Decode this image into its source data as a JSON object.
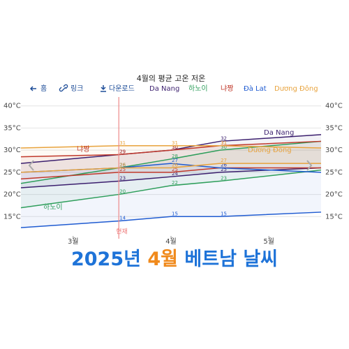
{
  "chart_data": {
    "type": "line",
    "title": "4월의 평균 고온 저온",
    "toolbar": [
      "홈",
      "링크",
      "다운로드"
    ],
    "xlim": [
      -16,
      76
    ],
    "xticks": [
      {
        "value": 0,
        "label": "3월"
      },
      {
        "value": 30,
        "label": "4월"
      },
      {
        "value": 60,
        "label": "5월"
      }
    ],
    "ylim": [
      10,
      42
    ],
    "yticks": [
      {
        "value": 15,
        "label": "15°C"
      },
      {
        "value": 20,
        "label": "20°C"
      },
      {
        "value": 25,
        "label": "25°C"
      },
      {
        "value": 30,
        "label": "30°C"
      },
      {
        "value": 35,
        "label": "35°C"
      },
      {
        "value": 40,
        "label": "40°C"
      }
    ],
    "grid": true,
    "current": {
      "x": 14,
      "label": "현재"
    },
    "x": [
      -16,
      14,
      30,
      45,
      76
    ],
    "series": [
      {
        "name": "Da Nang",
        "color": "#3b1f6e",
        "high": [
          27,
          29,
          30,
          32,
          33.5
        ],
        "low": [
          21.5,
          23,
          24,
          25,
          26
        ]
      },
      {
        "name": "하노이",
        "color": "#2e9e5b",
        "high": [
          22.5,
          26,
          28,
          30,
          32
        ],
        "low": [
          17,
          20,
          22,
          23,
          25.5
        ]
      },
      {
        "name": "냐짱",
        "color": "#c0392b",
        "high": [
          28.5,
          29,
          30,
          31,
          32
        ],
        "low": [
          23.5,
          25,
          25,
          26,
          26
        ]
      },
      {
        "name": "Đà Lat",
        "color": "#1f5bd1",
        "high": [
          25,
          26,
          27,
          26,
          25
        ],
        "low": [
          12.5,
          14,
          15,
          15,
          16
        ]
      },
      {
        "name": "Dương Đông",
        "color": "#e8a33d",
        "high": [
          30.5,
          31,
          31,
          31,
          30.5
        ],
        "low": [
          25,
          26,
          26,
          27,
          27
        ]
      }
    ]
  },
  "banner": [
    "2025년 ",
    "4월",
    " 베트남 날씨"
  ]
}
